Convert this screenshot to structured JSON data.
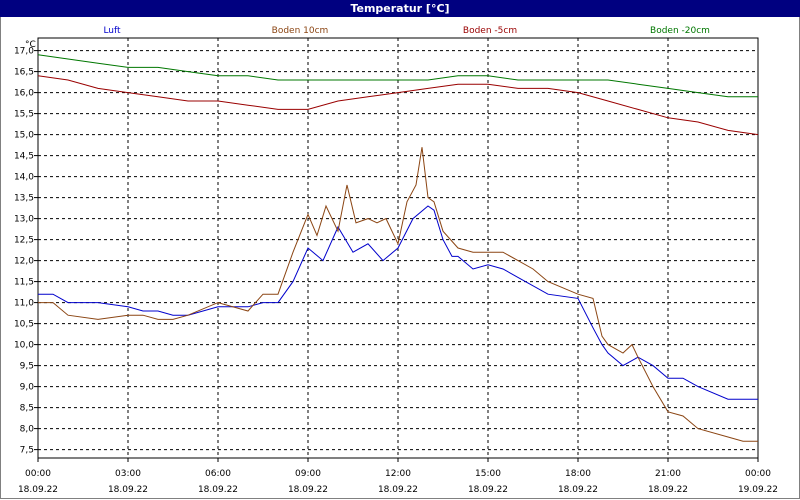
{
  "chart_data": {
    "type": "line",
    "title": "Temperatur [°C]",
    "ylabel": "°C",
    "ylim": [
      7.3,
      17.3
    ],
    "yticks": [
      "17,0",
      "16,5",
      "16,0",
      "15,5",
      "15,0",
      "14,5",
      "14,0",
      "13,5",
      "13,0",
      "12,5",
      "12,0",
      "11,5",
      "11,0",
      "10,5",
      "10,0",
      "9,5",
      "9,0",
      "8,5",
      "8,0",
      "7,5"
    ],
    "xticks": [
      {
        "time": "00:00",
        "date": "18.09.22",
        "h": 0
      },
      {
        "time": "03:00",
        "date": "18.09.22",
        "h": 3
      },
      {
        "time": "06:00",
        "date": "18.09.22",
        "h": 6
      },
      {
        "time": "09:00",
        "date": "18.09.22",
        "h": 9
      },
      {
        "time": "12:00",
        "date": "18.09.22",
        "h": 12
      },
      {
        "time": "15:00",
        "date": "18.09.22",
        "h": 15
      },
      {
        "time": "18:00",
        "date": "18.09.22",
        "h": 18
      },
      {
        "time": "21:00",
        "date": "18.09.22",
        "h": 21
      },
      {
        "time": "00:00",
        "date": "19.09.22",
        "h": 24
      }
    ],
    "grid": true,
    "series": [
      {
        "name": "Luft",
        "color": "#0000cc",
        "x": [
          0,
          0.5,
          1,
          2,
          3,
          3.5,
          4,
          4.5,
          5,
          6,
          7,
          7.5,
          8,
          8.5,
          9,
          9.5,
          10,
          10.5,
          11,
          11.5,
          12,
          12.5,
          13,
          13.2,
          13.5,
          13.8,
          14,
          14.5,
          15,
          15.5,
          16,
          17,
          18,
          18.5,
          18.8,
          19,
          19.5,
          20,
          20.5,
          21,
          21.5,
          22,
          23,
          24
        ],
        "y": [
          11.2,
          11.2,
          11.0,
          11.0,
          10.9,
          10.8,
          10.8,
          10.7,
          10.7,
          10.9,
          10.9,
          11.0,
          11.0,
          11.5,
          12.3,
          12.0,
          12.8,
          12.2,
          12.4,
          12.0,
          12.3,
          13.0,
          13.3,
          13.2,
          12.5,
          12.1,
          12.1,
          11.8,
          11.9,
          11.8,
          11.6,
          11.2,
          11.1,
          10.4,
          10.0,
          9.8,
          9.5,
          9.7,
          9.5,
          9.2,
          9.2,
          9.0,
          8.7,
          8.7
        ]
      },
      {
        "name": "Boden 10cm",
        "color": "#8b4513",
        "x": [
          0,
          0.5,
          1,
          2,
          3,
          3.5,
          4,
          4.5,
          5,
          6,
          7,
          7.5,
          8,
          8.5,
          9,
          9.3,
          9.6,
          10,
          10.3,
          10.6,
          11,
          11.3,
          11.6,
          12,
          12.3,
          12.6,
          12.8,
          13,
          13.2,
          13.5,
          14,
          14.5,
          15,
          15.5,
          16,
          16.5,
          17,
          18,
          18.5,
          18.8,
          19,
          19.5,
          19.8,
          20,
          20.5,
          21,
          21.5,
          22,
          23,
          23.5,
          24
        ],
        "y": [
          11.0,
          11.0,
          10.7,
          10.6,
          10.7,
          10.7,
          10.6,
          10.6,
          10.7,
          11.0,
          10.8,
          11.2,
          11.2,
          12.2,
          13.1,
          12.6,
          13.3,
          12.7,
          13.8,
          12.9,
          13.0,
          12.9,
          13.0,
          12.4,
          13.4,
          13.8,
          14.7,
          13.5,
          13.4,
          12.7,
          12.3,
          12.2,
          12.2,
          12.2,
          12.0,
          11.8,
          11.5,
          11.2,
          11.1,
          10.2,
          10.0,
          9.8,
          10.0,
          9.7,
          9.0,
          8.4,
          8.3,
          8.0,
          7.8,
          7.7,
          7.7
        ]
      },
      {
        "name": "Boden -5cm",
        "color": "#990000",
        "x": [
          0,
          1,
          2,
          3,
          4,
          5,
          6,
          7,
          8,
          9,
          10,
          11,
          12,
          13,
          14,
          15,
          16,
          17,
          18,
          19,
          20,
          21,
          22,
          23,
          24
        ],
        "y": [
          16.4,
          16.3,
          16.1,
          16.0,
          15.9,
          15.8,
          15.8,
          15.7,
          15.6,
          15.6,
          15.8,
          15.9,
          16.0,
          16.1,
          16.2,
          16.2,
          16.1,
          16.1,
          16.0,
          15.8,
          15.6,
          15.4,
          15.3,
          15.1,
          15.0
        ]
      },
      {
        "name": "Boden -20cm",
        "color": "#007700",
        "x": [
          0,
          1,
          2,
          3,
          4,
          5,
          6,
          7,
          8,
          9,
          10,
          11,
          12,
          13,
          14,
          15,
          16,
          17,
          18,
          19,
          20,
          21,
          22,
          23,
          24
        ],
        "y": [
          16.9,
          16.8,
          16.7,
          16.6,
          16.6,
          16.5,
          16.4,
          16.4,
          16.3,
          16.3,
          16.3,
          16.3,
          16.3,
          16.3,
          16.4,
          16.4,
          16.3,
          16.3,
          16.3,
          16.3,
          16.2,
          16.1,
          16.0,
          15.9,
          15.9
        ]
      }
    ]
  }
}
